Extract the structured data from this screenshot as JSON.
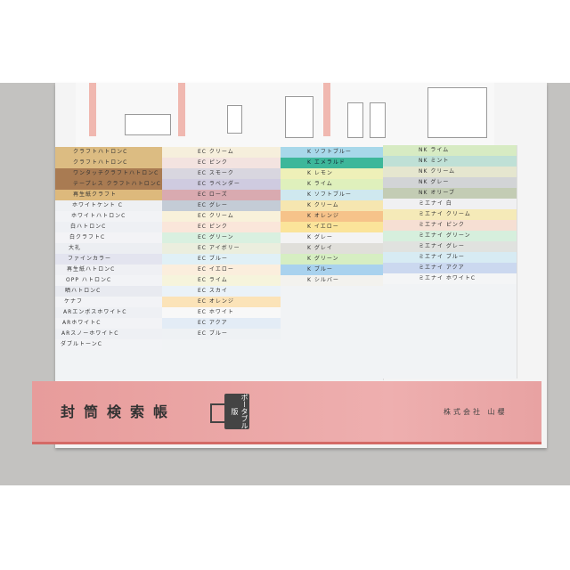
{
  "product": {
    "title": "封筒検索帳",
    "badge": "ポータブル版",
    "company": "株式会社 山櫻"
  },
  "columns": [
    {
      "strips": [
        {
          "label": "クラフトハトロンC",
          "color": "#dcbc82"
        },
        {
          "label": "クラフトハトロンC",
          "color": "#dcbc82"
        },
        {
          "label": "ワンタッチクラフトハトロンC",
          "color": "#a97b52"
        },
        {
          "label": "テープレス クラフトハトロンC",
          "color": "#a97b52"
        },
        {
          "label": "再生紙クラフト",
          "color": "#ddb97c"
        },
        {
          "label": "ホワイトケント C",
          "color": "#eef0f3"
        },
        {
          "label": "ホワイトハトロンC",
          "color": "#f2f3f6"
        },
        {
          "label": "白ハトロンC",
          "color": "#eef0f4"
        },
        {
          "label": "白クラフトC",
          "color": "#f3f3f6"
        },
        {
          "label": "大礼",
          "color": "#eceef2"
        },
        {
          "label": "ファインカラー",
          "color": "#e3e4ef"
        },
        {
          "label": "再生紙ハトロンC",
          "color": "#eff0f4"
        },
        {
          "label": "OPP ハトロンC",
          "color": "#f2f3f6"
        },
        {
          "label": "晒ハトロンC",
          "color": "#e8eaf0"
        },
        {
          "label": "ケナフ",
          "color": "#f2f3f6"
        },
        {
          "label": "ARエンボスホワイトC",
          "color": "#eef0f4"
        },
        {
          "label": "ARホワイトC",
          "color": "#f2f3f6"
        },
        {
          "label": "ARスノーホワイトC",
          "color": "#eef0f4"
        },
        {
          "label": "ダブルトーンC",
          "color": "#f2f3f6"
        }
      ]
    },
    {
      "strips": [
        {
          "label": "EC クリーム",
          "color": "#f6efdc"
        },
        {
          "label": "EC ピンク",
          "color": "#f3e3e0"
        },
        {
          "label": "EC スモーク",
          "color": "#d8d6df"
        },
        {
          "label": "EC ラベンダー",
          "color": "#cfcbe0"
        },
        {
          "label": "EC ローズ",
          "color": "#d9aab0"
        },
        {
          "label": "EC グレー",
          "color": "#c4ccd6"
        },
        {
          "label": "EC クリーム",
          "color": "#f8f1da"
        },
        {
          "label": "EC ピンク",
          "color": "#fae6da"
        },
        {
          "label": "EC グリーン",
          "color": "#d9f0e0"
        },
        {
          "label": "EC アイボリー",
          "color": "#ebeede"
        },
        {
          "label": "EC ブルー",
          "color": "#e0f0f6"
        },
        {
          "label": "EC イエロー",
          "color": "#fbeedd"
        },
        {
          "label": "EC ライム",
          "color": "#f6f4dc"
        },
        {
          "label": "EC スカイ",
          "color": "#eaf2f8"
        },
        {
          "label": "EC オレンジ",
          "color": "#fbe3b8"
        },
        {
          "label": "EC ホワイト",
          "color": "#f8f8f8"
        },
        {
          "label": "EC アクア",
          "color": "#e3ecf6"
        },
        {
          "label": "EC ブルー",
          "color": "#eef1f4"
        }
      ]
    },
    {
      "strips": [
        {
          "label": "K ソフトブルー",
          "color": "#a8d8ea"
        },
        {
          "label": "K エメラルド",
          "color": "#3db79a"
        },
        {
          "label": "K レモン",
          "color": "#eef0b8"
        },
        {
          "label": "K ライム",
          "color": "#dff0bc"
        },
        {
          "label": "K ソフトブルー",
          "color": "#cfe8ef"
        },
        {
          "label": "K クリーム",
          "color": "#f6e6b0"
        },
        {
          "label": "K オレンジ",
          "color": "#f6c38a"
        },
        {
          "label": "K イエロー",
          "color": "#fbe49a"
        },
        {
          "label": "K グレー",
          "color": "#f3f3f3"
        },
        {
          "label": "K グレイ",
          "color": "#e0dfda"
        },
        {
          "label": "K グリーン",
          "color": "#d6eec2"
        },
        {
          "label": "K ブルー",
          "color": "#a9d2ee"
        },
        {
          "label": "K シルバー",
          "color": "#f3f2ee"
        }
      ]
    },
    {
      "strips": [
        {
          "label": "NK ライム",
          "color": "#d7ebc3"
        },
        {
          "label": "NK ミント",
          "color": "#bfe0d6"
        },
        {
          "label": "NK クリーム",
          "color": "#e5e6cf"
        },
        {
          "label": "NK グレー",
          "color": "#d2d4d6"
        },
        {
          "label": "NK オリーブ",
          "color": "#c3ccb4"
        },
        {
          "label": "ミエナイ 白",
          "color": "#f0f0f2"
        },
        {
          "label": "ミエナイ クリーム",
          "color": "#f5eab8"
        },
        {
          "label": "ミエナイ ピンク",
          "color": "#f6dfd3"
        },
        {
          "label": "ミエナイ グリーン",
          "color": "#d6efdd"
        },
        {
          "label": "ミエナイ グレー",
          "color": "#e0e2df"
        },
        {
          "label": "ミエナイ ブルー",
          "color": "#d7ebf3"
        },
        {
          "label": "ミエナイ アクア",
          "color": "#cbd8ef"
        },
        {
          "label": "ミエナイ ホワイトC",
          "color": "#f4f5f6"
        }
      ]
    }
  ]
}
